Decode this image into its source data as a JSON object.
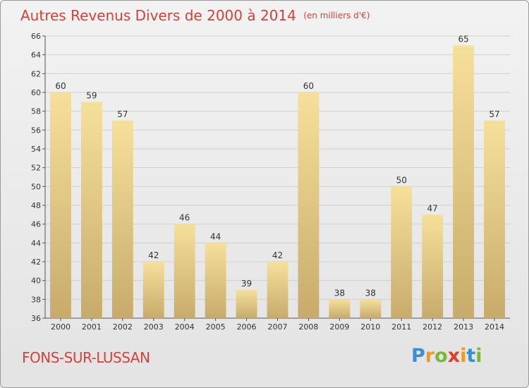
{
  "title": "Autres Revenus Divers de 2000 à 2014",
  "title_unit": "(en milliers d'€)",
  "place": "FONS-SUR-LUSSAN",
  "logo": {
    "letters": [
      "P",
      "r",
      "o",
      "x",
      "i",
      "t",
      "i"
    ],
    "colors": [
      "#3b8fd0",
      "#f29a1d",
      "#7bb83a",
      "#e23c2e",
      "#f29a1d",
      "#3b8fd0",
      "#7bb83a"
    ]
  },
  "chart_data": {
    "type": "bar",
    "categories": [
      "2000",
      "2001",
      "2002",
      "2003",
      "2004",
      "2005",
      "2006",
      "2007",
      "2008",
      "2009",
      "2010",
      "2011",
      "2012",
      "2013",
      "2014"
    ],
    "values": [
      60,
      59,
      57,
      42,
      46,
      44,
      39,
      42,
      60,
      38,
      38,
      50,
      47,
      65,
      57
    ],
    "ylim": [
      36,
      66
    ],
    "yticks": [
      36,
      38,
      40,
      42,
      44,
      46,
      48,
      50,
      52,
      54,
      56,
      58,
      60,
      62,
      64,
      66
    ],
    "grid": true,
    "bar_color_top": "#f5e09a",
    "bar_color_bottom": "#c8ab6c"
  }
}
